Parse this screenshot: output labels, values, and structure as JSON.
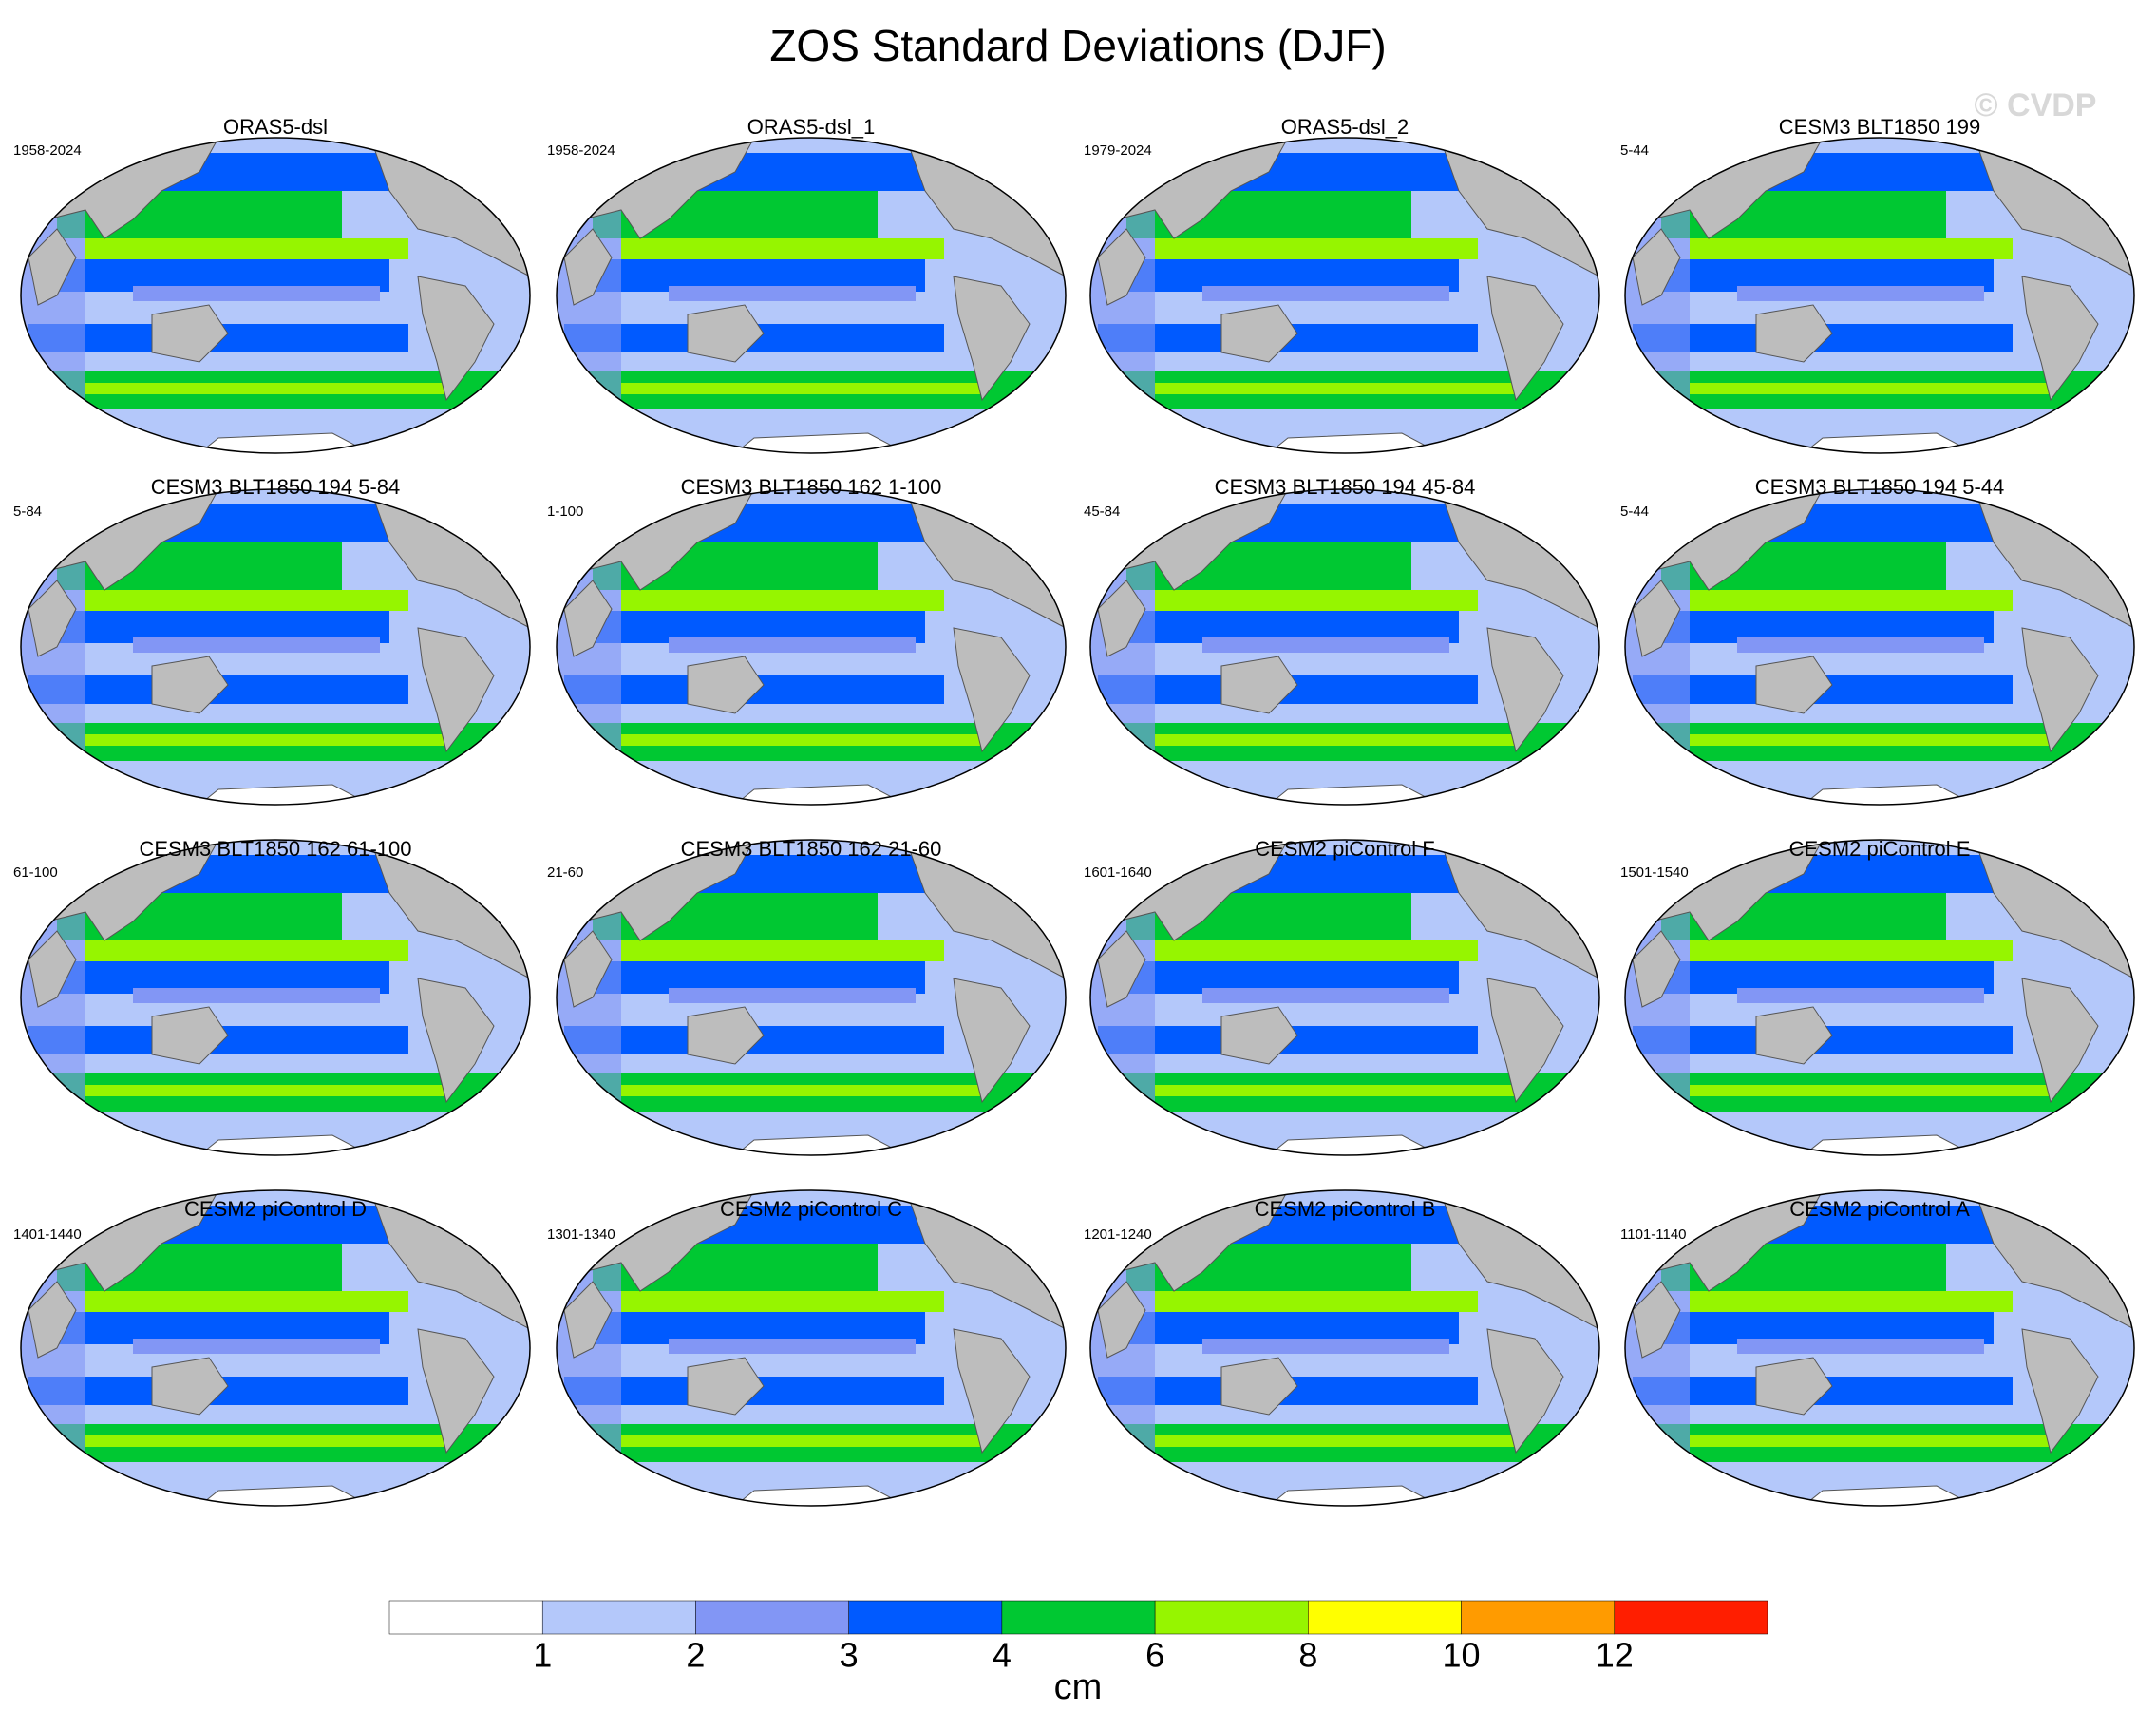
{
  "title": "ZOS Standard Deviations (DJF)",
  "watermark": "© CVDP",
  "panels": [
    {
      "title": "ORAS5-dsl",
      "period": "1958-2024"
    },
    {
      "title": "ORAS5-dsl_1",
      "period": "1958-2024"
    },
    {
      "title": "ORAS5-dsl_2",
      "period": "1979-2024"
    },
    {
      "title": "CESM3 BLT1850 199",
      "period": "5-44"
    },
    {
      "title": "CESM3 BLT1850 194 5-84",
      "period": "5-84"
    },
    {
      "title": "CESM3 BLT1850 162 1-100",
      "period": "1-100"
    },
    {
      "title": "CESM3 BLT1850 194 45-84",
      "period": "45-84"
    },
    {
      "title": "CESM3 BLT1850 194 5-44",
      "period": "5-44"
    },
    {
      "title": "CESM3 BLT1850 162 61-100",
      "period": "61-100"
    },
    {
      "title": "CESM3 BLT1850 162 21-60",
      "period": "21-60"
    },
    {
      "title": "CESM2 piControl F",
      "period": "1601-1640"
    },
    {
      "title": "CESM2 piControl E",
      "period": "1501-1540"
    },
    {
      "title": "CESM2 piControl D",
      "period": "1401-1440"
    },
    {
      "title": "CESM2 piControl C",
      "period": "1301-1340"
    },
    {
      "title": "CESM2 piControl B",
      "period": "1201-1240"
    },
    {
      "title": "CESM2 piControl A",
      "period": "1101-1140"
    }
  ],
  "colorbar": {
    "colors": [
      "#ffffff",
      "#b4c8fa",
      "#8296f5",
      "#005aff",
      "#00c832",
      "#96f500",
      "#ffff00",
      "#ff9b00",
      "#ff1e00"
    ],
    "levels": [
      1,
      2,
      3,
      4,
      6,
      8,
      10,
      12
    ],
    "label": "cm"
  }
}
